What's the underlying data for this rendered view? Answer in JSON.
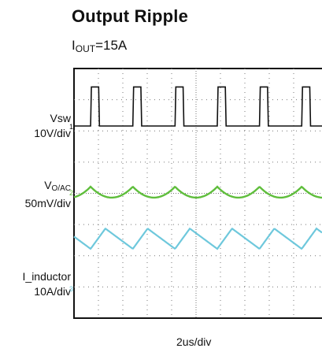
{
  "chart_data": {
    "type": "line",
    "title": "Output Ripple",
    "condition": {
      "main": "I",
      "sub": "OUT",
      "rest": "=15A"
    },
    "xlabel": "2us/div",
    "x_divisions": 10,
    "y_divisions": 8,
    "channels": [
      {
        "name": "Vsw",
        "scale": "10V/div",
        "color": "#111111",
        "marker": "1",
        "waveform": "pulse",
        "period_div": 1.73,
        "first_edge_div": 0.68,
        "high_div": 0.33,
        "amplitude_div": 1.25
      },
      {
        "name_main": "V",
        "name_sub": "O/AC",
        "scale": "50mV/div",
        "color": "#5fbe3c",
        "marker": "2",
        "waveform": "ripple",
        "period_div": 1.73,
        "first_edge_div": 0.68,
        "amplitude_div": 0.35
      },
      {
        "name": "I_inductor",
        "scale": "10A/div",
        "color": "#6ec8dc",
        "marker": "3",
        "waveform": "sawtooth",
        "period_div": 1.73,
        "first_edge_div": 0.68,
        "amplitude_div": 0.65
      }
    ],
    "grid": true
  }
}
